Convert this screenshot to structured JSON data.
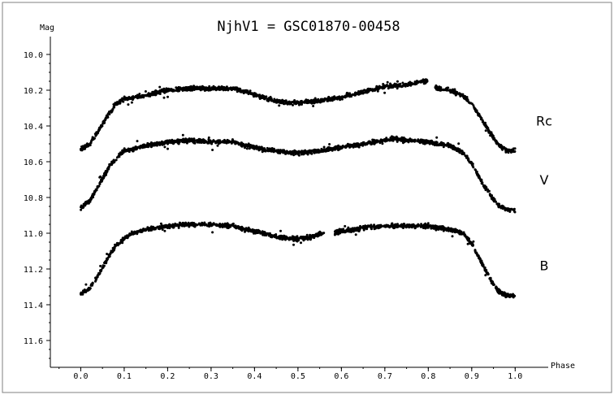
{
  "chart_data": {
    "type": "scatter",
    "title": "NjhV1 = GSC01870-00458",
    "xlabel": "Phase",
    "ylabel": "Mag",
    "xlim": [
      -0.07,
      1.02
    ],
    "ylim": [
      11.75,
      9.9
    ],
    "y_inverted": true,
    "x_ticks": [
      "0.0",
      "0.1",
      "0.2",
      "0.3",
      "0.4",
      "0.5",
      "0.6",
      "0.7",
      "0.8",
      "0.9",
      "1.0"
    ],
    "y_ticks": [
      "10.0",
      "10.2",
      "10.4",
      "10.6",
      "10.8",
      "11.0",
      "11.2",
      "11.4",
      "11.6"
    ],
    "grid": false,
    "marker_color": "#000000",
    "series": [
      {
        "name": "Rc",
        "points": [
          [
            0.0,
            10.53
          ],
          [
            0.02,
            10.5
          ],
          [
            0.04,
            10.43
          ],
          [
            0.06,
            10.35
          ],
          [
            0.08,
            10.28
          ],
          [
            0.1,
            10.25
          ],
          [
            0.12,
            10.24
          ],
          [
            0.15,
            10.23
          ],
          [
            0.18,
            10.21
          ],
          [
            0.2,
            10.2
          ],
          [
            0.25,
            10.19
          ],
          [
            0.3,
            10.19
          ],
          [
            0.35,
            10.19
          ],
          [
            0.38,
            10.21
          ],
          [
            0.42,
            10.24
          ],
          [
            0.45,
            10.26
          ],
          [
            0.48,
            10.27
          ],
          [
            0.5,
            10.27
          ],
          [
            0.55,
            10.26
          ],
          [
            0.6,
            10.24
          ],
          [
            0.65,
            10.21
          ],
          [
            0.7,
            10.18
          ],
          [
            0.75,
            10.17
          ],
          [
            0.79,
            10.15
          ],
          [
            0.8,
            10.15
          ],
          [
            0.82,
            10.19
          ],
          [
            0.85,
            10.2
          ],
          [
            0.88,
            10.23
          ],
          [
            0.9,
            10.28
          ],
          [
            0.92,
            10.35
          ],
          [
            0.94,
            10.43
          ],
          [
            0.96,
            10.5
          ],
          [
            0.98,
            10.54
          ],
          [
            1.0,
            10.54
          ]
        ],
        "gaps": [
          [
            0.8,
            0.815
          ]
        ]
      },
      {
        "name": "V",
        "points": [
          [
            0.0,
            10.86
          ],
          [
            0.02,
            10.82
          ],
          [
            0.04,
            10.74
          ],
          [
            0.06,
            10.65
          ],
          [
            0.08,
            10.58
          ],
          [
            0.1,
            10.54
          ],
          [
            0.12,
            10.53
          ],
          [
            0.15,
            10.51
          ],
          [
            0.18,
            10.5
          ],
          [
            0.2,
            10.49
          ],
          [
            0.25,
            10.48
          ],
          [
            0.3,
            10.49
          ],
          [
            0.35,
            10.49
          ],
          [
            0.38,
            10.51
          ],
          [
            0.42,
            10.53
          ],
          [
            0.45,
            10.54
          ],
          [
            0.48,
            10.55
          ],
          [
            0.5,
            10.55
          ],
          [
            0.55,
            10.54
          ],
          [
            0.6,
            10.52
          ],
          [
            0.65,
            10.5
          ],
          [
            0.7,
            10.48
          ],
          [
            0.72,
            10.47
          ],
          [
            0.75,
            10.48
          ],
          [
            0.8,
            10.49
          ],
          [
            0.85,
            10.51
          ],
          [
            0.88,
            10.55
          ],
          [
            0.9,
            10.61
          ],
          [
            0.92,
            10.7
          ],
          [
            0.94,
            10.78
          ],
          [
            0.96,
            10.84
          ],
          [
            0.98,
            10.87
          ],
          [
            1.0,
            10.87
          ]
        ],
        "gaps": []
      },
      {
        "name": "B",
        "points": [
          [
            0.0,
            11.34
          ],
          [
            0.02,
            11.31
          ],
          [
            0.04,
            11.24
          ],
          [
            0.06,
            11.15
          ],
          [
            0.08,
            11.07
          ],
          [
            0.1,
            11.03
          ],
          [
            0.12,
            11.0
          ],
          [
            0.15,
            10.98
          ],
          [
            0.18,
            10.97
          ],
          [
            0.2,
            10.96
          ],
          [
            0.25,
            10.95
          ],
          [
            0.3,
            10.95
          ],
          [
            0.35,
            10.96
          ],
          [
            0.38,
            10.98
          ],
          [
            0.42,
            11.0
          ],
          [
            0.45,
            11.02
          ],
          [
            0.48,
            11.03
          ],
          [
            0.5,
            11.03
          ],
          [
            0.53,
            11.02
          ],
          [
            0.56,
            11.0
          ],
          [
            0.58,
            11.0
          ],
          [
            0.6,
            10.99
          ],
          [
            0.65,
            10.97
          ],
          [
            0.7,
            10.96
          ],
          [
            0.75,
            10.96
          ],
          [
            0.8,
            10.96
          ],
          [
            0.85,
            10.98
          ],
          [
            0.88,
            11.0
          ],
          [
            0.9,
            11.06
          ],
          [
            0.92,
            11.15
          ],
          [
            0.94,
            11.25
          ],
          [
            0.96,
            11.32
          ],
          [
            0.98,
            11.35
          ],
          [
            1.0,
            11.35
          ]
        ],
        "gaps": [
          [
            0.56,
            0.585
          ]
        ]
      }
    ]
  }
}
